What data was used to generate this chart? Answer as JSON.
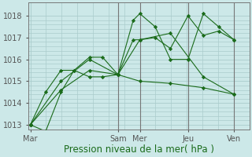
{
  "bg_color": "#cce8e8",
  "grid_color": "#aacccc",
  "line_color": "#1a6b1a",
  "marker_color": "#1a6b1a",
  "xlabel": "Pression niveau de la mer( hPa )",
  "ylim": [
    1012.8,
    1018.6
  ],
  "yticks": [
    1013,
    1014,
    1015,
    1016,
    1017,
    1018
  ],
  "xtick_labels": [
    "Mar",
    "Sam",
    "Mer",
    "Jeu",
    "Ven"
  ],
  "xtick_positions": [
    0.0,
    0.4,
    0.5,
    0.72,
    0.93
  ],
  "vlines_x": [
    0.4,
    0.5,
    0.72,
    0.93
  ],
  "line1": {
    "x": [
      0.0,
      0.07,
      0.14,
      0.2,
      0.27,
      0.33,
      0.4,
      0.47,
      0.5,
      0.57,
      0.64,
      0.72,
      0.79,
      0.86,
      0.93
    ],
    "y": [
      1013.0,
      1012.7,
      1014.5,
      1015.5,
      1016.1,
      1016.1,
      1015.3,
      1017.8,
      1018.1,
      1017.5,
      1016.0,
      1016.0,
      1018.1,
      1017.5,
      1016.9
    ]
  },
  "line2": {
    "x": [
      0.0,
      0.07,
      0.14,
      0.2,
      0.27,
      0.33,
      0.4,
      0.47,
      0.5,
      0.57,
      0.64,
      0.72,
      0.79,
      0.86,
      0.93
    ],
    "y": [
      1013.0,
      1014.5,
      1015.5,
      1015.5,
      1015.2,
      1015.2,
      1015.3,
      1016.9,
      1016.9,
      1017.0,
      1016.5,
      1018.0,
      1017.1,
      1017.3,
      1016.9
    ]
  },
  "line3": {
    "x": [
      0.0,
      0.14,
      0.27,
      0.4,
      0.5,
      0.64,
      0.79,
      0.93
    ],
    "y": [
      1013.0,
      1014.6,
      1015.5,
      1015.3,
      1015.0,
      1014.9,
      1014.7,
      1014.4
    ]
  },
  "line4": {
    "x": [
      0.0,
      0.14,
      0.27,
      0.4,
      0.5,
      0.64,
      0.79,
      0.93
    ],
    "y": [
      1013.0,
      1015.0,
      1016.0,
      1015.3,
      1016.9,
      1017.2,
      1015.2,
      1014.4
    ]
  },
  "font_size": 7.0,
  "xlabel_fontsize": 8.5
}
